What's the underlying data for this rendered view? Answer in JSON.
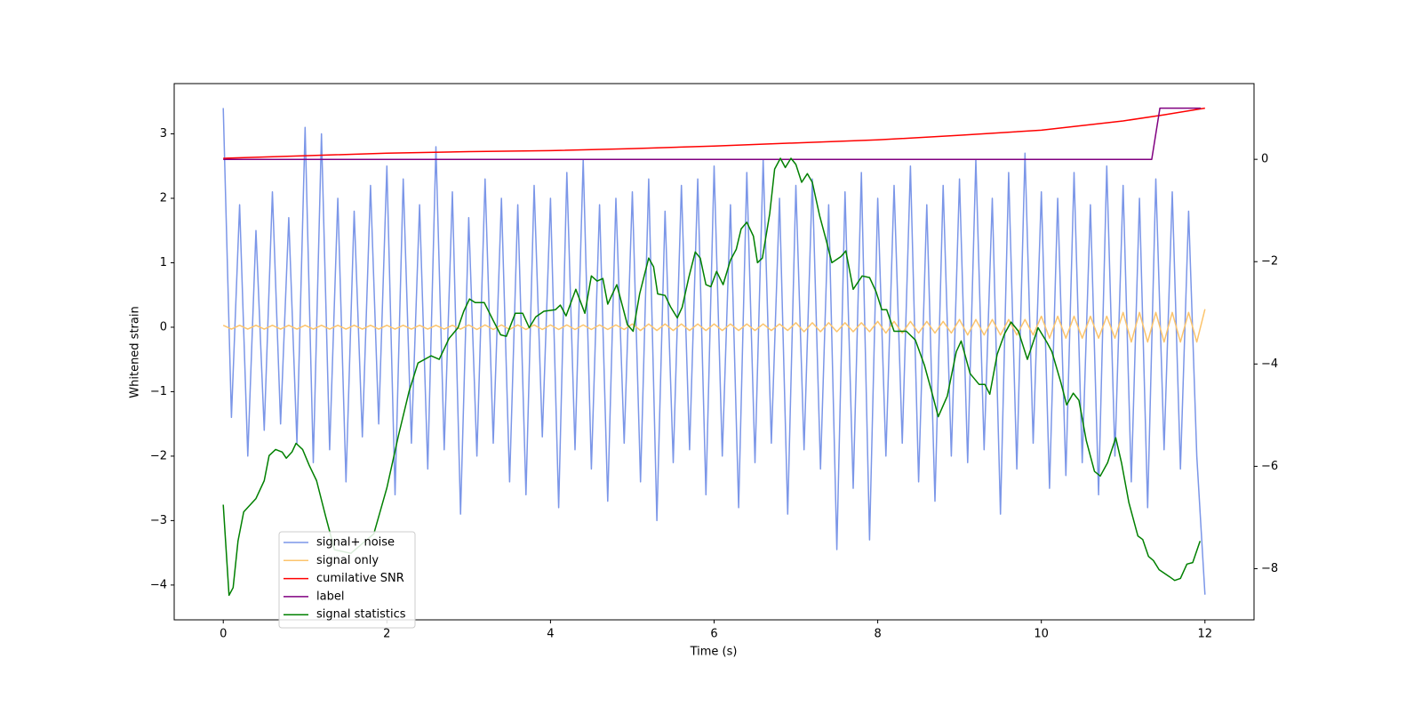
{
  "chart_data": {
    "type": "line",
    "xlabel": "Time (s)",
    "ylabel": "Whitened strain",
    "xlim": [
      -0.6,
      12.6
    ],
    "ylim": [
      -4.54,
      3.78
    ],
    "y2lim": [
      -9.0,
      1.48
    ],
    "xticks": [
      0,
      2,
      4,
      6,
      8,
      10,
      12
    ],
    "yticks": [
      3,
      2,
      1,
      0,
      {
        "value": -1,
        "label": "−1"
      },
      {
        "value": -2,
        "label": "−2"
      },
      {
        "value": -3,
        "label": "−3"
      },
      {
        "value": -4,
        "label": "−4"
      }
    ],
    "y2ticks": [
      0,
      {
        "value": -2,
        "label": "−2"
      },
      {
        "value": -4,
        "label": "−4"
      },
      {
        "value": -6,
        "label": "−6"
      },
      {
        "value": -8,
        "label": "−8"
      }
    ],
    "legend_loc": "best",
    "x": [
      0,
      0.1,
      0.2,
      0.3,
      0.4,
      0.5,
      0.6,
      0.7,
      0.8,
      0.9,
      1,
      1.1,
      1.2,
      1.3,
      1.4,
      1.5,
      1.6,
      1.7,
      1.8,
      1.9,
      2,
      2.1,
      2.2,
      2.3,
      2.4,
      2.5,
      2.6,
      2.7,
      2.8,
      2.9,
      3,
      3.1,
      3.2,
      3.3,
      3.4,
      3.5,
      3.6,
      3.7,
      3.8,
      3.9,
      4,
      4.1,
      4.2,
      4.3,
      4.4,
      4.5,
      4.6,
      4.7,
      4.8,
      4.9,
      5,
      5.1,
      5.2,
      5.3,
      5.4,
      5.5,
      5.6,
      5.7,
      5.8,
      5.9,
      6,
      6.1,
      6.2,
      6.3,
      6.4,
      6.5,
      6.6,
      6.7,
      6.8,
      6.9,
      7,
      7.1,
      7.2,
      7.3,
      7.4,
      7.5,
      7.6,
      7.7,
      7.8,
      7.9,
      8,
      8.1,
      8.2,
      8.3,
      8.4,
      8.5,
      8.6,
      8.7,
      8.8,
      8.9,
      9,
      9.1,
      9.2,
      9.3,
      9.4,
      9.5,
      9.6,
      9.7,
      9.8,
      9.9,
      10,
      10.1,
      10.2,
      10.3,
      10.4,
      10.5,
      10.6,
      10.7,
      10.8,
      10.9,
      11,
      11.1,
      11.2,
      11.3,
      11.4,
      11.5,
      11.6,
      11.7,
      11.8,
      11.9,
      12
    ],
    "series": [
      {
        "name": "signal+ noise",
        "color": "#7b96e8",
        "values": [
          3.4,
          -1.4,
          1.9,
          -2.0,
          1.5,
          -1.6,
          2.1,
          -1.5,
          1.7,
          -1.8,
          3.1,
          -2.1,
          3.0,
          -1.9,
          2.0,
          -2.4,
          1.8,
          -1.7,
          2.2,
          -1.5,
          2.5,
          -2.6,
          2.3,
          -1.8,
          1.9,
          -2.2,
          2.8,
          -1.9,
          2.1,
          -2.9,
          1.7,
          -2.0,
          2.3,
          -1.8,
          2.0,
          -2.4,
          1.9,
          -2.6,
          2.2,
          -1.7,
          2.0,
          -2.8,
          2.4,
          -1.9,
          2.6,
          -2.2,
          1.9,
          -2.7,
          2.0,
          -1.8,
          2.1,
          -2.4,
          2.3,
          -3.0,
          1.8,
          -2.1,
          2.2,
          -1.9,
          2.3,
          -2.6,
          2.5,
          -2.0,
          1.9,
          -2.8,
          2.4,
          -2.1,
          2.6,
          -1.8,
          2.0,
          -2.9,
          2.2,
          -1.9,
          2.3,
          -2.2,
          1.9,
          -3.45,
          2.1,
          -2.5,
          2.4,
          -3.3,
          2.0,
          -2.0,
          2.2,
          -1.8,
          2.5,
          -2.4,
          1.9,
          -2.7,
          2.2,
          -2.0,
          2.3,
          -2.1,
          2.6,
          -1.9,
          2.0,
          -2.9,
          2.4,
          -2.2,
          2.7,
          -1.8,
          2.1,
          -2.5,
          2.0,
          -2.3,
          2.4,
          -2.1,
          1.9,
          -2.6,
          2.5,
          -2.0,
          2.2,
          -2.4,
          2.0,
          -2.8,
          2.3,
          -1.9,
          2.1,
          -2.2,
          1.8,
          -2.0,
          -4.15
        ]
      },
      {
        "name": "signal only",
        "color": "#fcc46c",
        "values": [
          0.03,
          -0.03,
          0.03,
          -0.03,
          0.03,
          -0.03,
          0.03,
          -0.03,
          0.03,
          -0.03,
          0.03,
          -0.03,
          0.03,
          -0.03,
          0.03,
          -0.03,
          0.03,
          -0.03,
          0.03,
          -0.03,
          0.03,
          -0.03,
          0.03,
          -0.03,
          0.03,
          -0.03,
          0.03,
          -0.03,
          0.03,
          -0.03,
          0.035,
          -0.035,
          0.035,
          -0.035,
          0.035,
          -0.035,
          0.035,
          -0.035,
          0.035,
          -0.035,
          0.035,
          -0.035,
          0.035,
          -0.035,
          0.035,
          -0.035,
          0.035,
          -0.035,
          0.035,
          -0.035,
          0.05,
          -0.05,
          0.05,
          -0.05,
          0.05,
          -0.05,
          0.05,
          -0.05,
          0.05,
          -0.05,
          0.05,
          -0.05,
          0.05,
          -0.05,
          0.05,
          -0.05,
          0.05,
          -0.05,
          0.05,
          -0.05,
          0.07,
          -0.07,
          0.07,
          -0.07,
          0.07,
          -0.07,
          0.07,
          -0.07,
          0.07,
          -0.07,
          0.09,
          -0.09,
          0.09,
          -0.09,
          0.09,
          -0.09,
          0.09,
          -0.09,
          0.09,
          -0.09,
          0.12,
          -0.12,
          0.12,
          -0.12,
          0.12,
          -0.12,
          0.12,
          -0.12,
          0.12,
          -0.12,
          0.17,
          -0.17,
          0.17,
          -0.17,
          0.17,
          -0.17,
          0.17,
          -0.17,
          0.17,
          -0.17,
          0.23,
          -0.23,
          0.23,
          -0.23,
          0.23,
          -0.23,
          0.23,
          -0.23,
          0.23,
          -0.23,
          0.28
        ]
      },
      {
        "name": "cumilative SNR",
        "color": "red",
        "axis": "y2",
        "x": [
          0,
          1,
          2,
          3,
          4,
          5,
          6,
          7,
          8,
          9,
          10,
          11,
          11.5,
          12
        ],
        "values": [
          0.02,
          0.07,
          0.12,
          0.15,
          0.17,
          0.21,
          0.26,
          0.32,
          0.38,
          0.47,
          0.57,
          0.75,
          0.87,
          1.0
        ]
      },
      {
        "name": "label",
        "color": "purple",
        "axis": "y2",
        "x": [
          0,
          11.35,
          11.45,
          11.95
        ],
        "values": [
          0,
          0,
          1,
          1
        ]
      },
      {
        "name": "signal statistics",
        "color": "green",
        "axis": "y2",
        "x": [
          0,
          0.07,
          0.12,
          0.18,
          0.25,
          0.4,
          0.5,
          0.56,
          0.64,
          0.72,
          0.77,
          0.84,
          0.89,
          0.97,
          1.05,
          1.14,
          1.25,
          1.36,
          1.56,
          1.84,
          2.0,
          2.14,
          2.27,
          2.38,
          2.54,
          2.64,
          2.76,
          2.87,
          2.94,
          3.01,
          3.08,
          3.19,
          3.3,
          3.39,
          3.46,
          3.57,
          3.66,
          3.74,
          3.82,
          3.92,
          4.06,
          4.12,
          4.19,
          4.31,
          4.42,
          4.5,
          4.57,
          4.64,
          4.7,
          4.81,
          4.94,
          5.01,
          5.09,
          5.2,
          5.26,
          5.31,
          5.4,
          5.47,
          5.55,
          5.61,
          5.69,
          5.77,
          5.83,
          5.9,
          5.96,
          6.03,
          6.11,
          6.2,
          6.27,
          6.33,
          6.4,
          6.48,
          6.53,
          6.59,
          6.68,
          6.74,
          6.81,
          6.87,
          6.94,
          7.0,
          7.07,
          7.14,
          7.2,
          7.29,
          7.37,
          7.44,
          7.55,
          7.61,
          7.7,
          7.81,
          7.9,
          7.98,
          8.05,
          8.11,
          8.2,
          8.35,
          8.46,
          8.57,
          8.66,
          8.74,
          8.85,
          8.96,
          9.02,
          9.13,
          9.24,
          9.31,
          9.37,
          9.46,
          9.55,
          9.63,
          9.72,
          9.83,
          9.96,
          10.07,
          10.13,
          10.24,
          10.31,
          10.39,
          10.46,
          10.55,
          10.65,
          10.72,
          10.81,
          10.91,
          10.98,
          11.07,
          11.18,
          11.24,
          11.31,
          11.37,
          11.44,
          11.57,
          11.63,
          11.7,
          11.78,
          11.85,
          11.94
        ],
        "values": [
          -6.75,
          -8.52,
          -8.37,
          -7.46,
          -6.89,
          -6.63,
          -6.28,
          -5.79,
          -5.67,
          -5.72,
          -5.84,
          -5.72,
          -5.55,
          -5.67,
          -5.98,
          -6.28,
          -6.97,
          -7.63,
          -7.7,
          -7.32,
          -6.42,
          -5.41,
          -4.54,
          -3.98,
          -3.84,
          -3.91,
          -3.5,
          -3.29,
          -2.97,
          -2.73,
          -2.8,
          -2.8,
          -3.15,
          -3.43,
          -3.46,
          -3.01,
          -3.01,
          -3.29,
          -3.08,
          -2.97,
          -2.94,
          -2.85,
          -3.06,
          -2.54,
          -3.01,
          -2.28,
          -2.38,
          -2.33,
          -2.83,
          -2.45,
          -3.23,
          -3.36,
          -2.63,
          -1.93,
          -2.1,
          -2.63,
          -2.66,
          -2.89,
          -3.1,
          -2.89,
          -2.31,
          -1.81,
          -1.93,
          -2.45,
          -2.49,
          -2.19,
          -2.45,
          -1.97,
          -1.76,
          -1.36,
          -1.23,
          -1.5,
          -2.02,
          -1.93,
          -1.06,
          -0.19,
          0.02,
          -0.16,
          0.02,
          -0.1,
          -0.45,
          -0.28,
          -0.45,
          -1.1,
          -1.58,
          -2.02,
          -1.9,
          -1.79,
          -2.54,
          -2.28,
          -2.31,
          -2.59,
          -2.94,
          -2.94,
          -3.36,
          -3.36,
          -3.53,
          -4.02,
          -4.54,
          -5.03,
          -4.63,
          -3.76,
          -3.55,
          -4.19,
          -4.4,
          -4.4,
          -4.59,
          -3.81,
          -3.41,
          -3.18,
          -3.36,
          -3.91,
          -3.29,
          -3.58,
          -3.76,
          -4.37,
          -4.8,
          -4.57,
          -4.71,
          -5.5,
          -6.1,
          -6.19,
          -5.93,
          -5.44,
          -5.93,
          -6.71,
          -7.36,
          -7.43,
          -7.76,
          -7.84,
          -8.02,
          -8.16,
          -8.23,
          -8.19,
          -7.91,
          -7.88,
          -7.46
        ]
      }
    ]
  }
}
